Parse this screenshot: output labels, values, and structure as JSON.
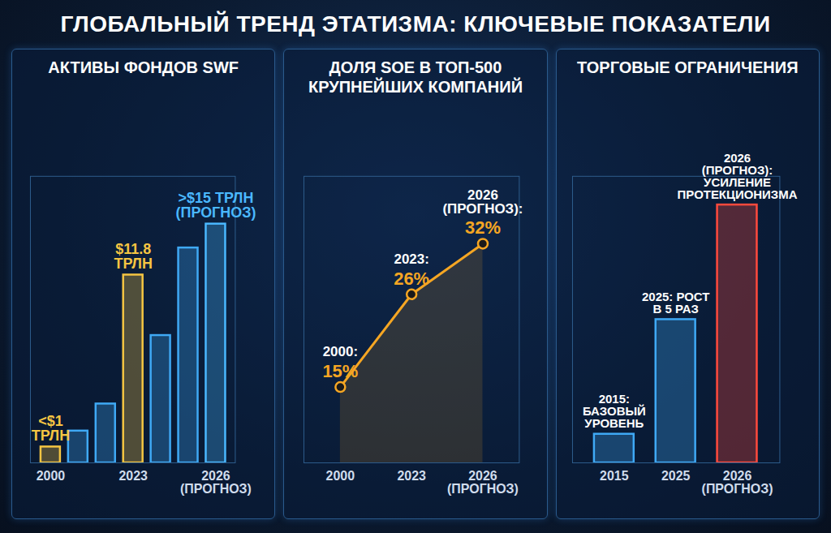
{
  "title": "ГЛОБАЛЬНЫЙ ТРЕНД ЭТАТИЗМА: КЛЮЧЕВЫЕ ПОКАЗАТЕЛИ",
  "chart_data": [
    {
      "type": "bar",
      "title": "АКТИВЫ ФОНДОВ SWF",
      "categories": [
        "2000",
        null,
        null,
        "2023",
        null,
        null,
        "2026 (ПРОГНОЗ)"
      ],
      "values": [
        1,
        2,
        3.7,
        11.8,
        8,
        13.5,
        15
      ],
      "value_labels": [
        "<$1 ТРЛН",
        null,
        null,
        "$11.8 ТРЛН",
        null,
        null,
        ">$15 ТРЛН (ПРОГНОЗ)"
      ],
      "colors": [
        "#f5c542",
        "#3fa9f5",
        "#3fa9f5",
        "#f5c542",
        "#3fa9f5",
        "#3fa9f5",
        "#4ab8ff"
      ],
      "data_labels": true,
      "tick_labels": "x",
      "ylim": [
        0,
        18
      ],
      "yticks": []
    },
    {
      "type": "line",
      "title": "ДОЛЯ SOE В ТОП-500 КРУПНЕЙШИХ КОМПАНИЙ",
      "categories": [
        "2000",
        "2023",
        "2026 (ПРОГНОЗ)"
      ],
      "values": [
        15,
        26,
        32
      ],
      "value_labels": [
        "15%",
        "26%",
        "32%"
      ],
      "annotations": [
        "2000:",
        "2023:",
        "2026 (ПРОГНОЗ):"
      ],
      "color": "#f5a623",
      "marker": "circle",
      "data_labels": true,
      "tick_labels": "x",
      "ylim": [
        6,
        40
      ],
      "yticks": []
    },
    {
      "type": "bar",
      "title": "ТОРГОВЫЕ ОГРАНИЧЕНИЯ",
      "categories": [
        "2015",
        "2025",
        "2026 (ПРОГНОЗ)"
      ],
      "values": [
        1,
        5,
        9
      ],
      "annotations": [
        "2015: БАЗОВЫЙ УРОВЕНЬ",
        "2025: РОСТ В 5 РАЗ",
        "2026 (ПРОГНОЗ): УСИЛЕНИЕ ПРОТЕКЦИОНИЗМА"
      ],
      "colors": [
        "#3fa9f5",
        "#3fa9f5",
        "#ff4a3d"
      ],
      "tick_labels": "x",
      "ylim": [
        0,
        10
      ],
      "yticks": []
    }
  ]
}
